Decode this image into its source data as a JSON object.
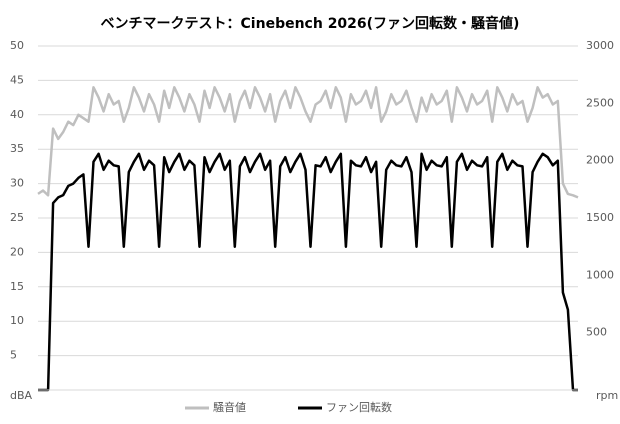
{
  "chart_data": {
    "type": "line",
    "title": "ベンチマークテスト：Cinebench 2026(ファン回転数・騒音値)",
    "ylim": [
      0,
      50
    ],
    "yticks": [
      {
        "value": 0,
        "label": "dBA"
      },
      5,
      10,
      15,
      20,
      25,
      30,
      35,
      40,
      45,
      50
    ],
    "y2lim": [
      0,
      3000
    ],
    "y2ticks": [
      {
        "value": 0,
        "label": "rpm"
      },
      500,
      1000,
      1500,
      2000,
      2500,
      3000
    ],
    "grid": true,
    "legend": "bottom",
    "series": [
      {
        "name": "騒音値",
        "color": "#bfbfbf",
        "values": [
          28.5,
          29,
          28.3,
          38,
          36.5,
          37.5,
          39,
          38.5,
          40,
          39.5,
          39,
          44,
          42.5,
          40.5,
          43,
          41.5,
          42,
          39,
          41,
          44,
          42.5,
          40.5,
          43,
          41.5,
          39,
          43.5,
          41,
          44,
          42.5,
          40.5,
          43,
          41.5,
          39,
          43.5,
          41,
          44,
          42.5,
          40.5,
          43,
          39,
          42,
          43.5,
          41,
          44,
          42.5,
          40.5,
          43,
          39,
          42,
          43.5,
          41,
          44,
          42.5,
          40.5,
          39,
          41.5,
          42,
          43.5,
          41,
          44,
          42.5,
          39,
          43,
          41.5,
          42,
          43.5,
          41,
          44,
          39,
          40.5,
          43,
          41.5,
          42,
          43.5,
          41,
          39,
          42.5,
          40.5,
          43,
          41.5,
          42,
          43.5,
          39,
          44,
          42.5,
          40.5,
          43,
          41.5,
          42,
          43.5,
          39,
          44,
          42.5,
          40.5,
          43,
          41.5,
          42,
          39,
          41,
          44,
          42.5,
          43,
          41.5,
          42,
          30,
          28.5,
          28.3,
          28
        ]
      },
      {
        "name": "ファン回転数",
        "color": "#000000",
        "axis": "y2",
        "values": [
          0,
          0,
          0,
          1630,
          1680,
          1700,
          1780,
          1800,
          1850,
          1880,
          1250,
          1990,
          2060,
          1920,
          2000,
          1960,
          1950,
          1250,
          1900,
          1990,
          2060,
          1920,
          2000,
          1960,
          1250,
          2030,
          1900,
          1990,
          2060,
          1920,
          2000,
          1960,
          1250,
          2030,
          1900,
          1990,
          2060,
          1920,
          2000,
          1250,
          1950,
          2030,
          1900,
          1990,
          2060,
          1920,
          2000,
          1250,
          1950,
          2030,
          1900,
          1990,
          2060,
          1920,
          1250,
          1960,
          1950,
          2030,
          1900,
          1990,
          2060,
          1250,
          2000,
          1960,
          1950,
          2030,
          1900,
          1990,
          1250,
          1920,
          2000,
          1960,
          1950,
          2030,
          1900,
          1250,
          2060,
          1920,
          2000,
          1960,
          1950,
          2030,
          1250,
          1990,
          2060,
          1920,
          2000,
          1960,
          1950,
          2030,
          1250,
          1990,
          2060,
          1920,
          2000,
          1960,
          1950,
          1250,
          1900,
          1990,
          2060,
          2030,
          1960,
          2000,
          850,
          700,
          0,
          0
        ]
      }
    ]
  }
}
